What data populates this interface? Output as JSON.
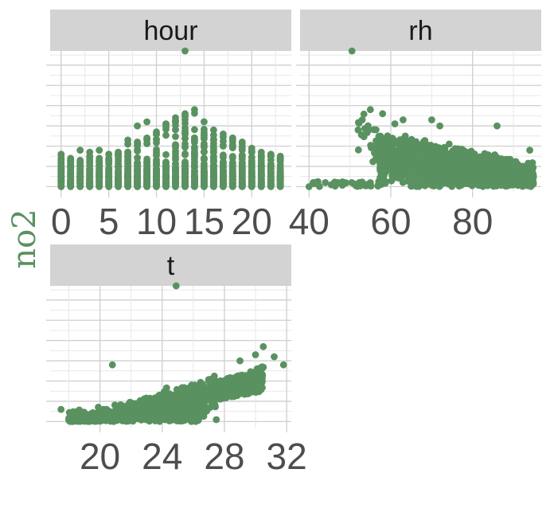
{
  "colors": {
    "point": "#5a9160",
    "strip": "#d3d3d3",
    "grid_major": "#cfcfcf",
    "grid_minor": "#e8e8e8",
    "axis_text": "#4d4d4d",
    "ylabel": "#5a9160"
  },
  "chart_data": [
    {
      "type": "scatter",
      "facet": "hour",
      "title": "hour",
      "xlabel": "",
      "ylabel": "no2",
      "xlim": [
        -1.15,
        24.15
      ],
      "ylim": [
        -3,
        67
      ],
      "xticks": [
        "0",
        "5",
        "10",
        "15",
        "20"
      ],
      "grid": true,
      "hour_bins": [
        {
          "x": 0,
          "max": 16
        },
        {
          "x": 1,
          "max": 14
        },
        {
          "x": 2,
          "max": 13
        },
        {
          "x": 3,
          "max": 15
        },
        {
          "x": 4,
          "max": 14
        },
        {
          "x": 5,
          "max": 16
        },
        {
          "x": 6,
          "max": 17
        },
        {
          "x": 7,
          "max": 21
        },
        {
          "x": 8,
          "max": 22
        },
        {
          "x": 9,
          "max": 24
        },
        {
          "x": 10,
          "max": 27
        },
        {
          "x": 11,
          "max": 31
        },
        {
          "x": 12,
          "max": 34
        },
        {
          "x": 13,
          "max": 36
        },
        {
          "x": 14,
          "max": 38
        },
        {
          "x": 15,
          "max": 32
        },
        {
          "x": 16,
          "max": 28
        },
        {
          "x": 17,
          "max": 26
        },
        {
          "x": 18,
          "max": 24
        },
        {
          "x": 19,
          "max": 22
        },
        {
          "x": 20,
          "max": 19
        },
        {
          "x": 21,
          "max": 17
        },
        {
          "x": 22,
          "max": 16
        },
        {
          "x": 23,
          "max": 15
        }
      ],
      "notable_points": [
        {
          "x": 13,
          "y": 67
        },
        {
          "x": 8,
          "y": 30
        },
        {
          "x": 9,
          "y": 32
        },
        {
          "x": 2,
          "y": 18
        },
        {
          "x": 3,
          "y": 17
        },
        {
          "x": 4,
          "y": 18
        },
        {
          "x": 7,
          "y": 23
        }
      ]
    },
    {
      "type": "scatter",
      "facet": "rh",
      "title": "rh",
      "xlabel": "",
      "ylabel": "no2",
      "xlim": [
        37.8,
        96.8
      ],
      "ylim": [
        -3,
        67
      ],
      "xticks": [
        "40",
        "60",
        "80"
      ],
      "grid": true,
      "notable_points": [
        {
          "x": 50.5,
          "y": 67
        },
        {
          "x": 40,
          "y": 0
        },
        {
          "x": 44,
          "y": 2
        },
        {
          "x": 47,
          "y": 2
        },
        {
          "x": 52,
          "y": 28
        },
        {
          "x": 53,
          "y": 33
        },
        {
          "x": 55,
          "y": 38
        },
        {
          "x": 58,
          "y": 36
        },
        {
          "x": 61,
          "y": 31
        },
        {
          "x": 63,
          "y": 33
        },
        {
          "x": 70,
          "y": 33
        },
        {
          "x": 72,
          "y": 30
        },
        {
          "x": 86,
          "y": 30
        },
        {
          "x": 94,
          "y": 18
        }
      ]
    },
    {
      "type": "scatter",
      "facet": "t",
      "title": "t",
      "xlabel": "",
      "ylabel": "no2",
      "xlim": [
        16.8,
        32.3
      ],
      "ylim": [
        -3,
        67
      ],
      "xticks": [
        "20",
        "24",
        "28",
        "32"
      ],
      "grid": true,
      "notable_points": [
        {
          "x": 24.9,
          "y": 67
        },
        {
          "x": 20.8,
          "y": 28
        },
        {
          "x": 29,
          "y": 30
        },
        {
          "x": 30,
          "y": 33
        },
        {
          "x": 30.5,
          "y": 37
        },
        {
          "x": 31.2,
          "y": 32
        },
        {
          "x": 31.8,
          "y": 28
        },
        {
          "x": 17.5,
          "y": 6
        },
        {
          "x": 26.3,
          "y": 2
        }
      ]
    }
  ]
}
